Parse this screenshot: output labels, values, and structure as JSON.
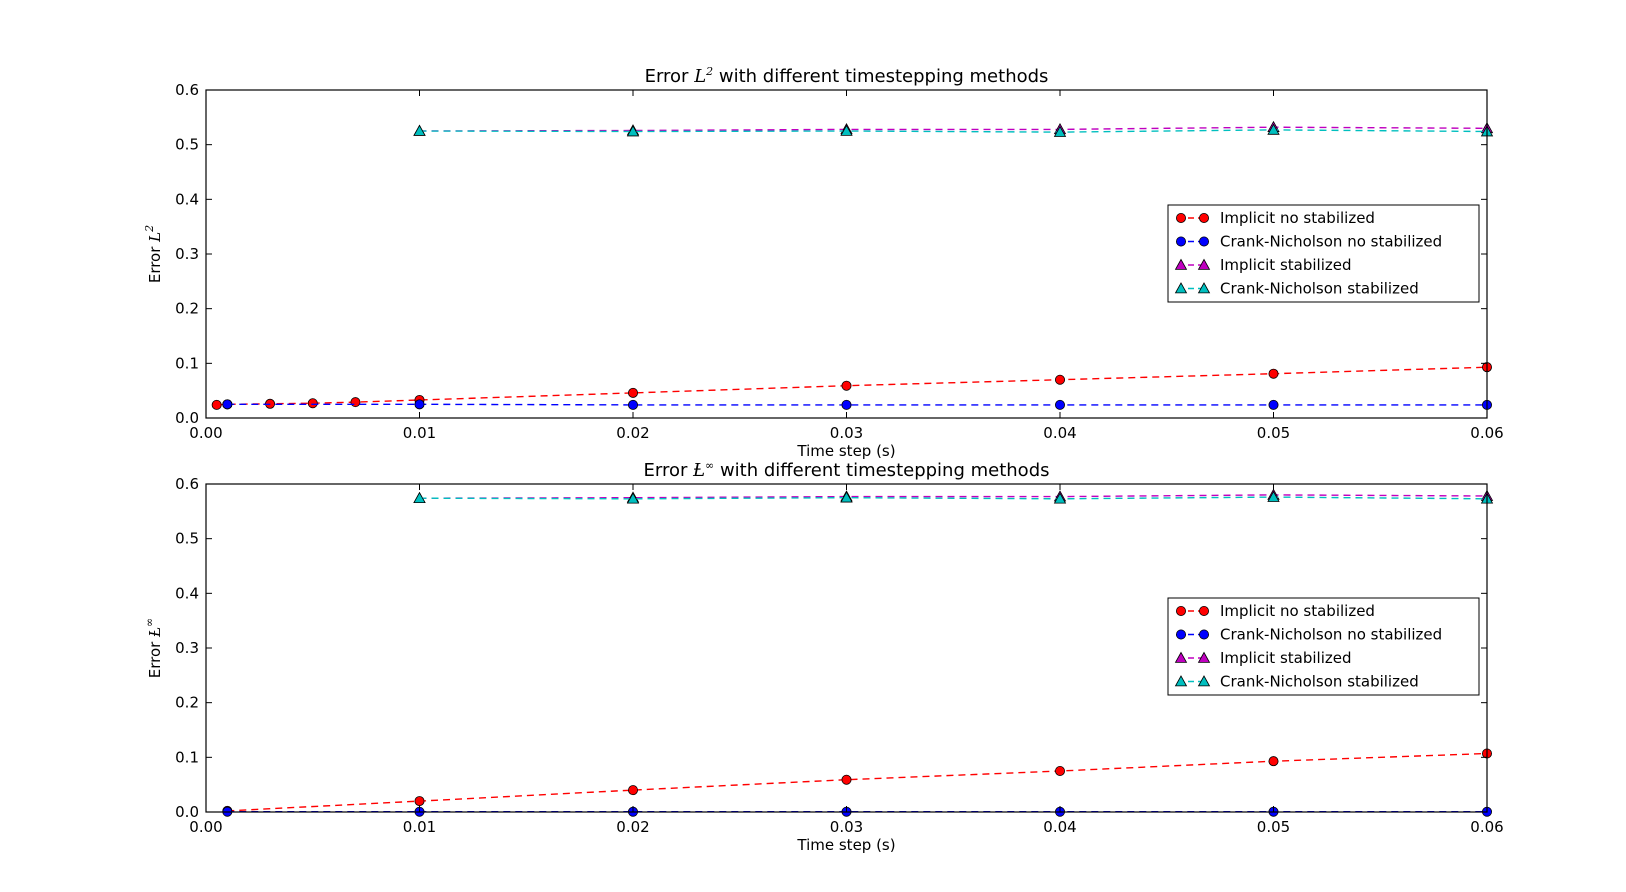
{
  "chart_data": [
    {
      "type": "line",
      "title": "Error $L^2$  with different timestepping methods",
      "title_parts": {
        "prefix": "Error ",
        "symbol": "L",
        "superscript": "2",
        "suffix": "  with different timestepping methods"
      },
      "xlabel": "Time step (s)",
      "ylabel": "Error $L^2$",
      "ylabel_parts": {
        "prefix": "Error ",
        "symbol": "L",
        "superscript": "2"
      },
      "xlim": [
        0.0,
        0.06
      ],
      "ylim": [
        0.0,
        0.6
      ],
      "xticks": [
        0.0,
        0.01,
        0.02,
        0.03,
        0.04,
        0.05,
        0.06
      ],
      "xtick_labels": [
        "0.00",
        "0.01",
        "0.02",
        "0.03",
        "0.04",
        "0.05",
        "0.06"
      ],
      "yticks": [
        0.0,
        0.1,
        0.2,
        0.3,
        0.4,
        0.5,
        0.6
      ],
      "ytick_labels": [
        "0.0",
        "0.1",
        "0.2",
        "0.3",
        "0.4",
        "0.5",
        "0.6"
      ],
      "grid": false,
      "legend_position": "center-right",
      "series": [
        {
          "name": "Implicit no stabilized",
          "color": "#ff0000",
          "marker": "circle",
          "x": [
            0.0005,
            0.001,
            0.003,
            0.005,
            0.007,
            0.01,
            0.02,
            0.03,
            0.04,
            0.05,
            0.06
          ],
          "y": [
            0.024,
            0.025,
            0.026,
            0.027,
            0.029,
            0.033,
            0.046,
            0.059,
            0.07,
            0.081,
            0.093
          ]
        },
        {
          "name": "Crank-Nicholson no stabilized",
          "color": "#0000ff",
          "marker": "circle",
          "x": [
            0.001,
            0.01,
            0.02,
            0.03,
            0.04,
            0.05,
            0.06
          ],
          "y": [
            0.025,
            0.025,
            0.024,
            0.024,
            0.024,
            0.024,
            0.024
          ]
        },
        {
          "name": "Implicit stabilized",
          "color": "#bf00bf",
          "marker": "triangle",
          "x": [
            0.01,
            0.02,
            0.03,
            0.04,
            0.05,
            0.06
          ],
          "y": [
            0.525,
            0.526,
            0.528,
            0.528,
            0.532,
            0.53
          ]
        },
        {
          "name": "Crank-Nicholson stabilized",
          "color": "#00bfbf",
          "marker": "triangle",
          "x": [
            0.01,
            0.02,
            0.03,
            0.04,
            0.05,
            0.06
          ],
          "y": [
            0.525,
            0.524,
            0.525,
            0.523,
            0.527,
            0.524
          ]
        }
      ]
    },
    {
      "type": "line",
      "title": "Error $L^\\infty$  with different timestepping methods",
      "title_parts": {
        "prefix": "Error ",
        "symbol": "Ƚ",
        "superscript": "∞",
        "suffix": "  with different timestepping methods"
      },
      "xlabel": "Time step (s)",
      "ylabel": "Error $L^\\infty$",
      "ylabel_parts": {
        "prefix": "Error ",
        "symbol": "Ƚ",
        "superscript": "∞"
      },
      "xlim": [
        0.0,
        0.06
      ],
      "ylim": [
        0.0,
        0.6
      ],
      "xticks": [
        0.0,
        0.01,
        0.02,
        0.03,
        0.04,
        0.05,
        0.06
      ],
      "xtick_labels": [
        "0.00",
        "0.01",
        "0.02",
        "0.03",
        "0.04",
        "0.05",
        "0.06"
      ],
      "yticks": [
        0.0,
        0.1,
        0.2,
        0.3,
        0.4,
        0.5,
        0.6
      ],
      "ytick_labels": [
        "0.0",
        "0.1",
        "0.2",
        "0.3",
        "0.4",
        "0.5",
        "0.6"
      ],
      "grid": false,
      "legend_position": "center-right",
      "series": [
        {
          "name": "Implicit no stabilized",
          "color": "#ff0000",
          "marker": "circle",
          "x": [
            0.001,
            0.01,
            0.02,
            0.03,
            0.04,
            0.05,
            0.06
          ],
          "y": [
            0.002,
            0.02,
            0.04,
            0.059,
            0.075,
            0.093,
            0.107
          ]
        },
        {
          "name": "Crank-Nicholson no stabilized",
          "color": "#0000ff",
          "marker": "circle",
          "x": [
            0.001,
            0.01,
            0.02,
            0.03,
            0.04,
            0.05,
            0.06
          ],
          "y": [
            0.0005,
            0.0005,
            0.0005,
            0.0005,
            0.0005,
            0.0005,
            0.0005
          ]
        },
        {
          "name": "Implicit stabilized",
          "color": "#bf00bf",
          "marker": "triangle",
          "x": [
            0.01,
            0.02,
            0.03,
            0.04,
            0.05,
            0.06
          ],
          "y": [
            0.574,
            0.575,
            0.577,
            0.577,
            0.58,
            0.578
          ]
        },
        {
          "name": "Crank-Nicholson stabilized",
          "color": "#00bfbf",
          "marker": "triangle",
          "x": [
            0.01,
            0.02,
            0.03,
            0.04,
            0.05,
            0.06
          ],
          "y": [
            0.574,
            0.573,
            0.575,
            0.573,
            0.576,
            0.573
          ]
        }
      ]
    }
  ]
}
